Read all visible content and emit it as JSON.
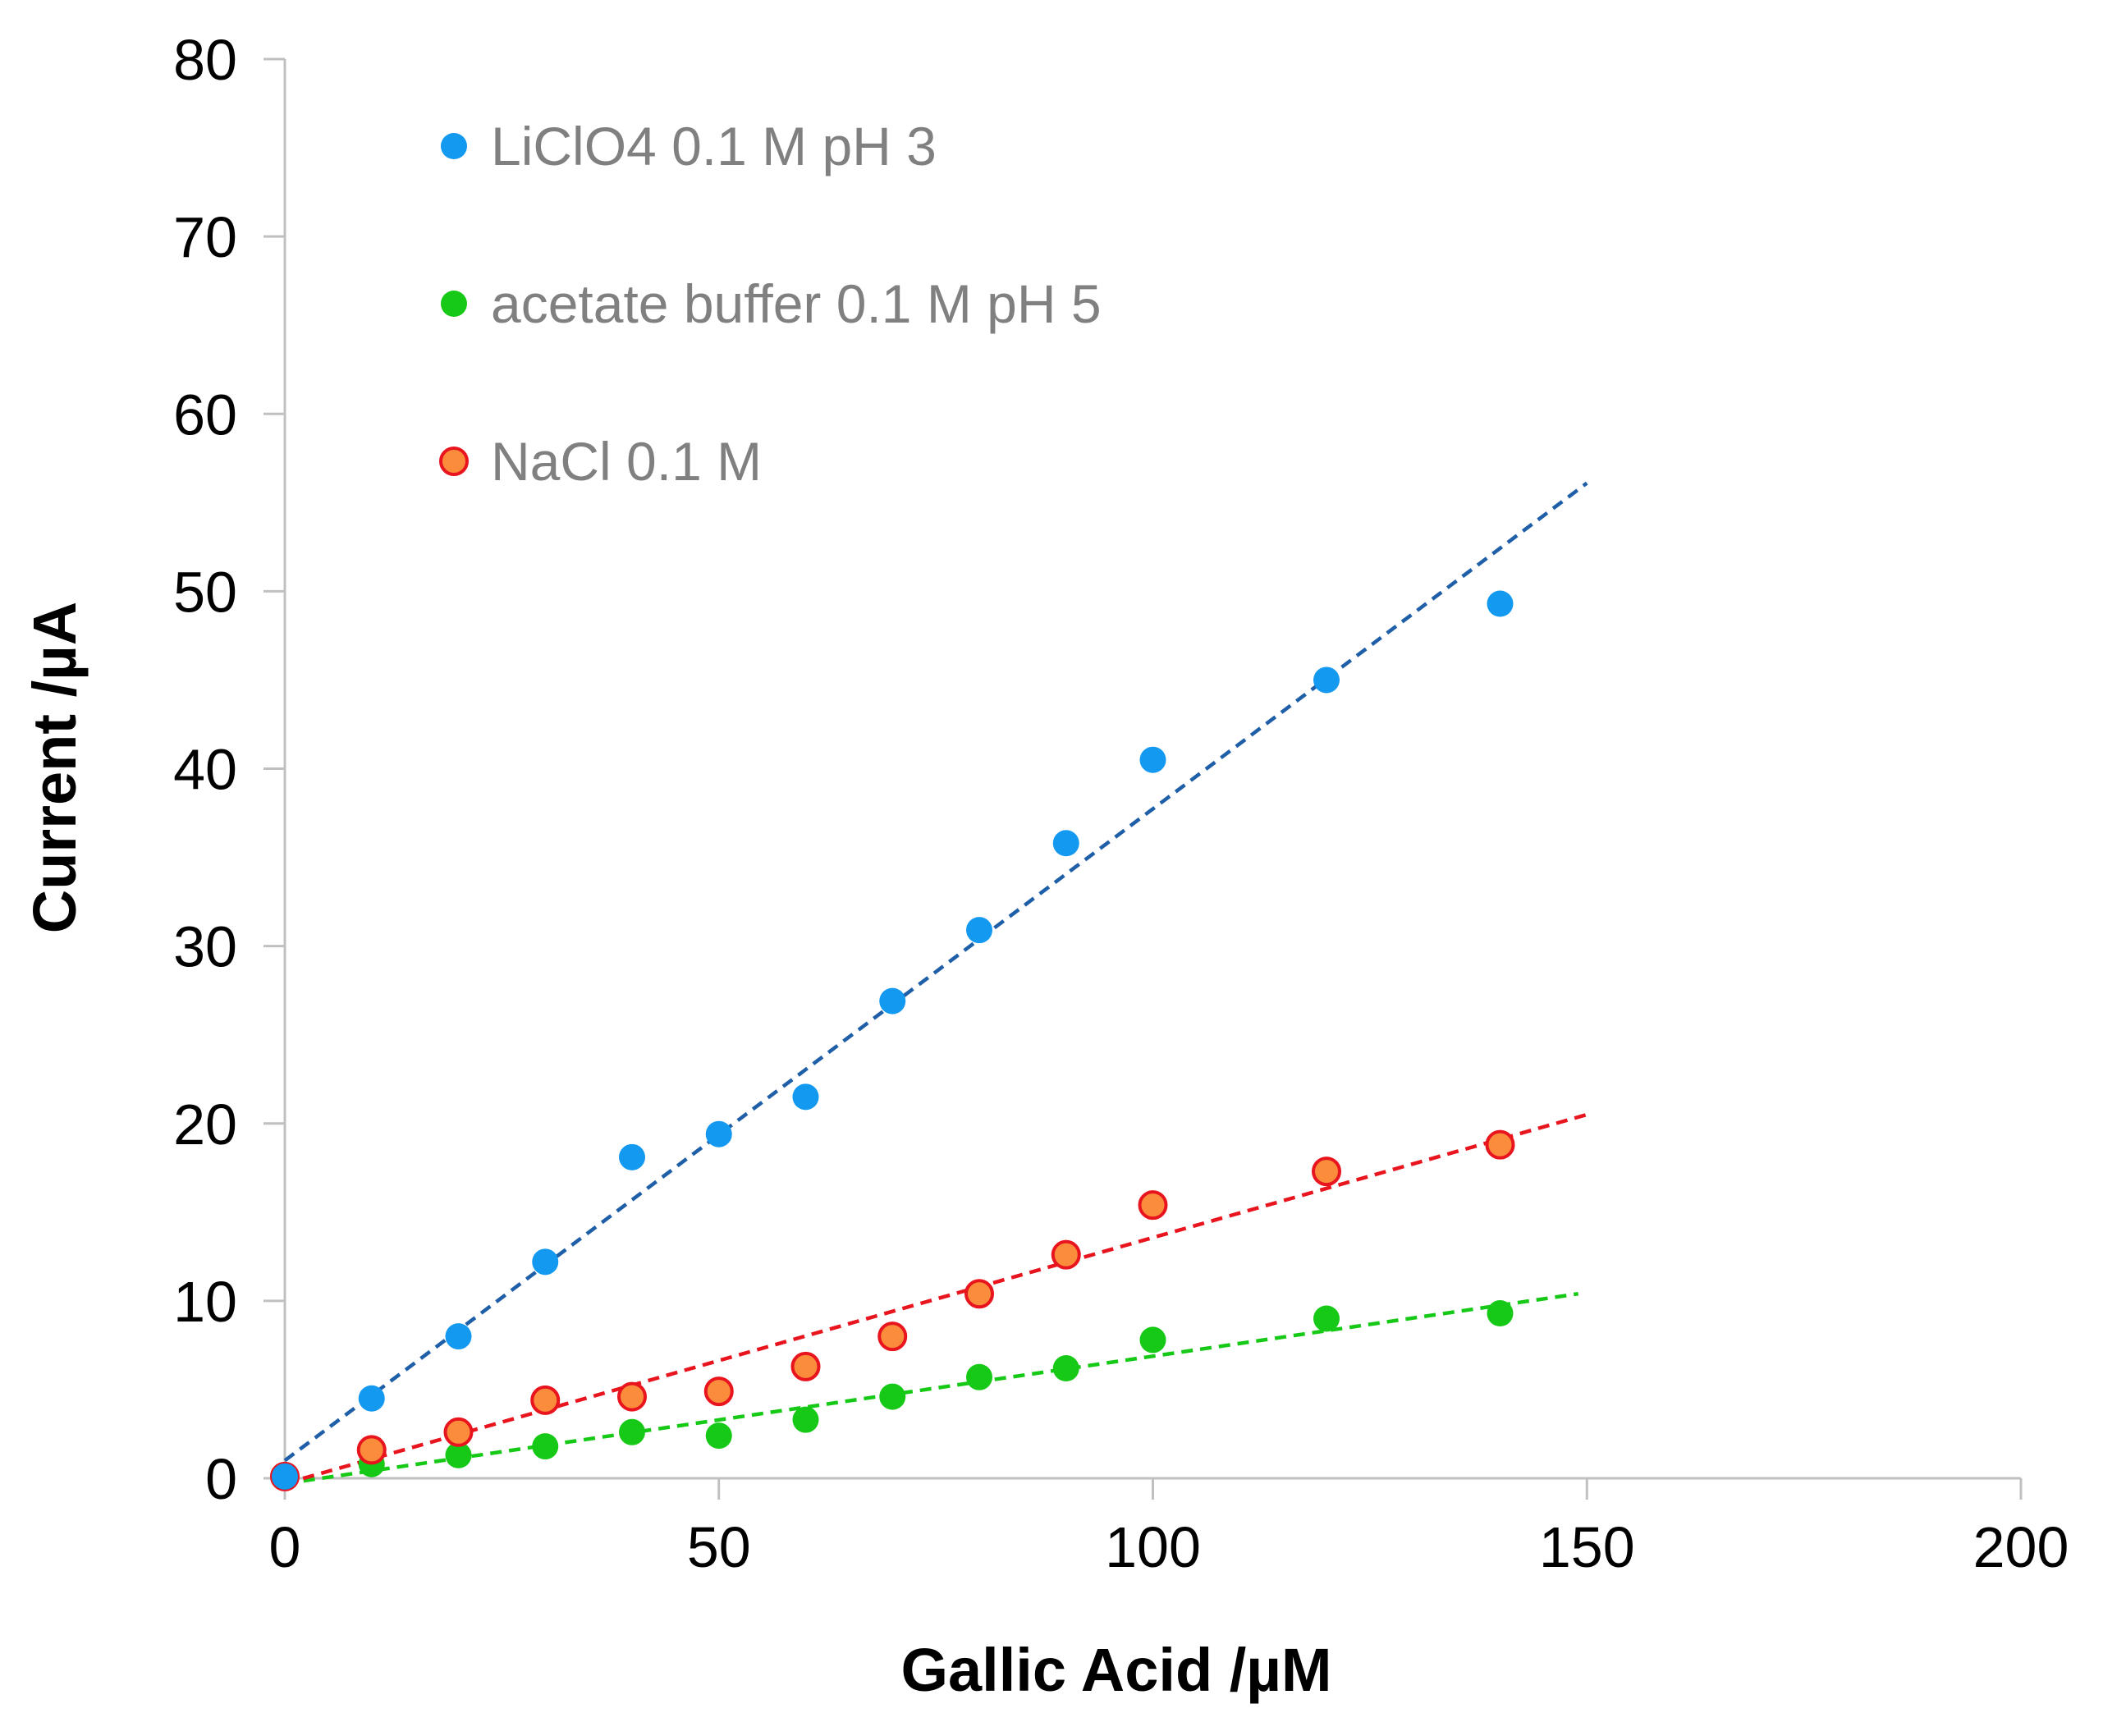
{
  "chart_data": {
    "type": "scatter",
    "title": "",
    "xlabel": "Gallic Acid /µM",
    "ylabel": "Current /µA",
    "xlim": [
      0,
      200
    ],
    "ylim": [
      0,
      80
    ],
    "xticks": [
      0,
      50,
      100,
      150,
      200
    ],
    "yticks": [
      0,
      10,
      20,
      30,
      40,
      50,
      60,
      70,
      80
    ],
    "x_tick_labels": [
      "0",
      "50",
      "100",
      "150",
      "200"
    ],
    "y_tick_labels": [
      "0",
      "10",
      "20",
      "30",
      "40",
      "50",
      "60",
      "70",
      "80"
    ],
    "grid": false,
    "legend_position": "top-left",
    "series": [
      {
        "name": "LiClO4 0.1 M pH 3",
        "fill": "#1499f0",
        "stroke": "#1499f0",
        "trend_color": "#1f5fa8",
        "x": [
          0,
          10,
          20,
          30,
          40,
          50,
          60,
          70,
          80,
          90,
          100,
          120,
          140
        ],
        "y": [
          0.1,
          4.5,
          8.0,
          12.2,
          18.1,
          19.4,
          21.5,
          26.9,
          30.9,
          35.8,
          40.5,
          45.0,
          49.3
        ],
        "trendline": {
          "x": [
            0,
            150
          ],
          "y": [
            1.0,
            56.1
          ]
        }
      },
      {
        "name": "acetate buffer 0.1 M pH 5",
        "fill": "#17c917",
        "stroke": "#17c917",
        "trend_color": "#17c917",
        "x": [
          0,
          10,
          20,
          30,
          40,
          50,
          60,
          70,
          80,
          90,
          100,
          120,
          140
        ],
        "y": [
          0.1,
          0.8,
          1.3,
          1.8,
          2.6,
          2.4,
          3.3,
          4.6,
          5.7,
          6.2,
          7.8,
          9.0,
          9.3
        ],
        "trendline": {
          "x": [
            0,
            149
          ],
          "y": [
            -0.3,
            10.4
          ]
        }
      },
      {
        "name": "NaCl 0.1 M",
        "fill": "#fa8c3c",
        "stroke": "#e8141e",
        "trend_color": "#e8141e",
        "x": [
          0,
          10,
          20,
          30,
          40,
          50,
          60,
          70,
          80,
          90,
          100,
          120,
          140
        ],
        "y": [
          0.1,
          1.6,
          2.6,
          4.4,
          4.6,
          4.9,
          6.3,
          8.0,
          10.4,
          12.6,
          15.4,
          17.3,
          18.8
        ],
        "trendline": {
          "x": [
            0,
            150
          ],
          "y": [
            -0.3,
            20.5
          ]
        }
      }
    ]
  },
  "colors": {
    "axis": "#c0c0c0",
    "tick_text": "#000000",
    "legend_text": "#808080"
  }
}
